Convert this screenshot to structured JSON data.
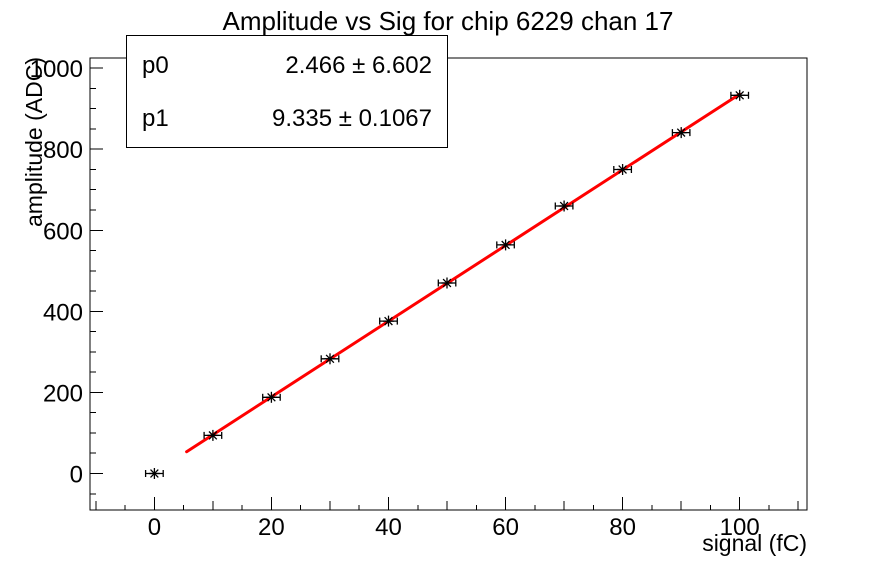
{
  "window": {
    "background": "#ffffff"
  },
  "chart_data": {
    "type": "scatter",
    "title": "Amplitude vs Sig for chip 6229 chan 17",
    "xlabel": "signal (fC)",
    "ylabel": "amplitude (ADC)",
    "xlim": [
      -11,
      111.5
    ],
    "ylim": [
      -90,
      1025
    ],
    "grid": false,
    "legend": null,
    "x": [
      0,
      10,
      20,
      30,
      40,
      50,
      60,
      70,
      80,
      90,
      100
    ],
    "y": [
      0,
      94,
      188,
      283,
      376,
      470,
      564,
      660,
      750,
      841,
      933
    ],
    "x_error": 1.5,
    "marker": "asterisk-8-ray",
    "marker_color": "#000000",
    "x_major_ticks": [
      0,
      20,
      40,
      60,
      80,
      100
    ],
    "x_medium_ticks": [
      -10,
      10,
      30,
      50,
      70,
      90,
      110
    ],
    "x_minor_ticks": [
      -5,
      5,
      15,
      25,
      35,
      45,
      55,
      65,
      75,
      85,
      95,
      105
    ],
    "y_major_ticks": [
      0,
      200,
      400,
      600,
      800,
      1000
    ],
    "y_minor_step": 50,
    "fit_line": {
      "color": "#ff0000",
      "from_x": 5.5,
      "to_x": 100,
      "p0": 2.466,
      "p1": 9.335
    }
  },
  "stats_box": {
    "rows": [
      {
        "name": "p0",
        "value": "2.466 ± 6.602"
      },
      {
        "name": "p1",
        "value": "9.335 ± 0.1067"
      }
    ]
  }
}
